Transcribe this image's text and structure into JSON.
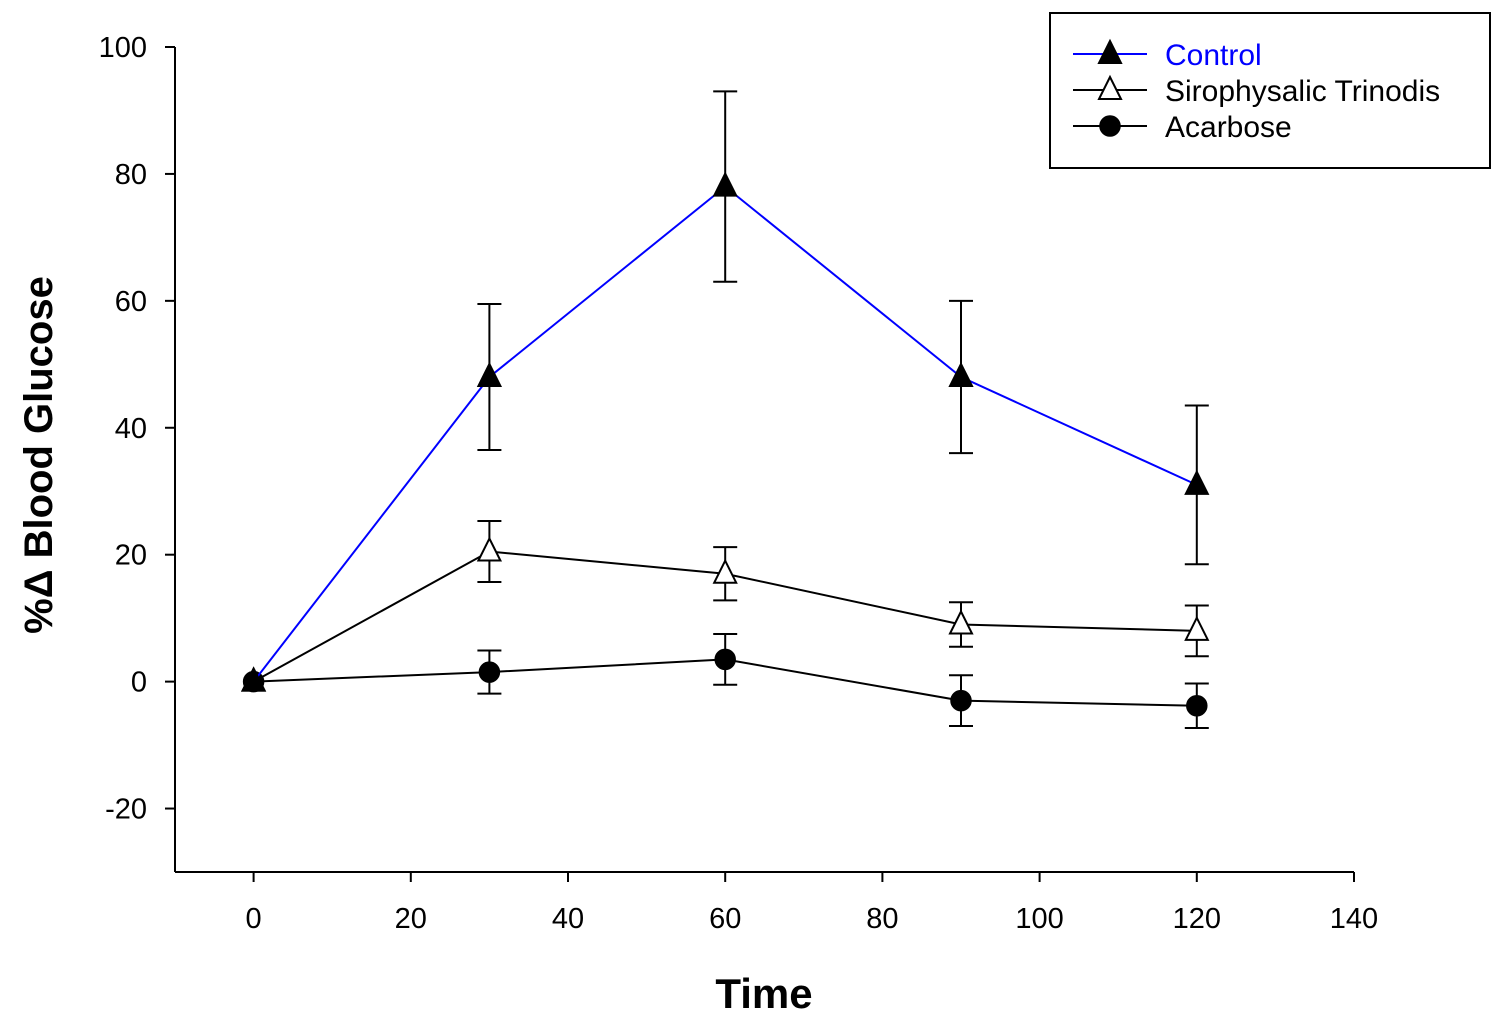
{
  "chart_data": {
    "type": "line",
    "title": "",
    "xlabel": "Time",
    "ylabel": "%Δ Blood Glucose",
    "xlim": [
      -10,
      140
    ],
    "ylim": [
      -30,
      100
    ],
    "x_ticks": [
      0,
      20,
      40,
      60,
      80,
      100,
      120,
      140
    ],
    "y_ticks": [
      -20,
      0,
      20,
      40,
      60,
      80,
      100
    ],
    "x": [
      0,
      30,
      60,
      90,
      120
    ],
    "grid": false,
    "legend_position": "top-right",
    "series": [
      {
        "name": "Control",
        "color": "#0000ff",
        "marker": "filled-triangle",
        "values": [
          0,
          48,
          78,
          48,
          31
        ],
        "error": [
          0,
          11.5,
          15,
          12,
          12.5
        ]
      },
      {
        "name": "Sirophysalic Trinodis",
        "color": "#000000",
        "marker": "open-triangle",
        "values": [
          0,
          20.5,
          17,
          9,
          8
        ],
        "error": [
          0,
          4.8,
          4.2,
          3.5,
          4
        ]
      },
      {
        "name": "Acarbose",
        "color": "#000000",
        "marker": "filled-circle",
        "values": [
          0,
          1.5,
          3.5,
          -3,
          -3.8
        ],
        "error": [
          0,
          3.4,
          4,
          4,
          3.5
        ]
      }
    ]
  }
}
